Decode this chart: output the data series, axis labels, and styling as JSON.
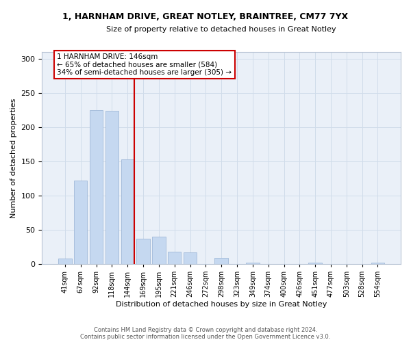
{
  "title_line1": "1, HARNHAM DRIVE, GREAT NOTLEY, BRAINTREE, CM77 7YX",
  "title_line2": "Size of property relative to detached houses in Great Notley",
  "xlabel": "Distribution of detached houses by size in Great Notley",
  "ylabel": "Number of detached properties",
  "categories": [
    "41sqm",
    "67sqm",
    "92sqm",
    "118sqm",
    "144sqm",
    "169sqm",
    "195sqm",
    "221sqm",
    "246sqm",
    "272sqm",
    "298sqm",
    "323sqm",
    "349sqm",
    "374sqm",
    "400sqm",
    "426sqm",
    "451sqm",
    "477sqm",
    "503sqm",
    "528sqm",
    "554sqm"
  ],
  "values": [
    8,
    122,
    225,
    224,
    153,
    37,
    40,
    18,
    17,
    0,
    9,
    0,
    2,
    0,
    0,
    0,
    2,
    0,
    0,
    0,
    2
  ],
  "bar_color": "#c5d8f0",
  "bar_edgecolor": "#a0b8d8",
  "vline_color": "#cc0000",
  "annotation_line1": "1 HARNHAM DRIVE: 146sqm",
  "annotation_line2": "← 65% of detached houses are smaller (584)",
  "annotation_line3": "34% of semi-detached houses are larger (305) →",
  "annotation_box_facecolor": "#ffffff",
  "annotation_box_edgecolor": "#cc0000",
  "footer_line1": "Contains HM Land Registry data © Crown copyright and database right 2024.",
  "footer_line2": "Contains public sector information licensed under the Open Government Licence v3.0.",
  "ylim": [
    0,
    310
  ],
  "yticks": [
    0,
    50,
    100,
    150,
    200,
    250,
    300
  ],
  "grid_color": "#d0dcea",
  "background_color": "#eaf0f8"
}
